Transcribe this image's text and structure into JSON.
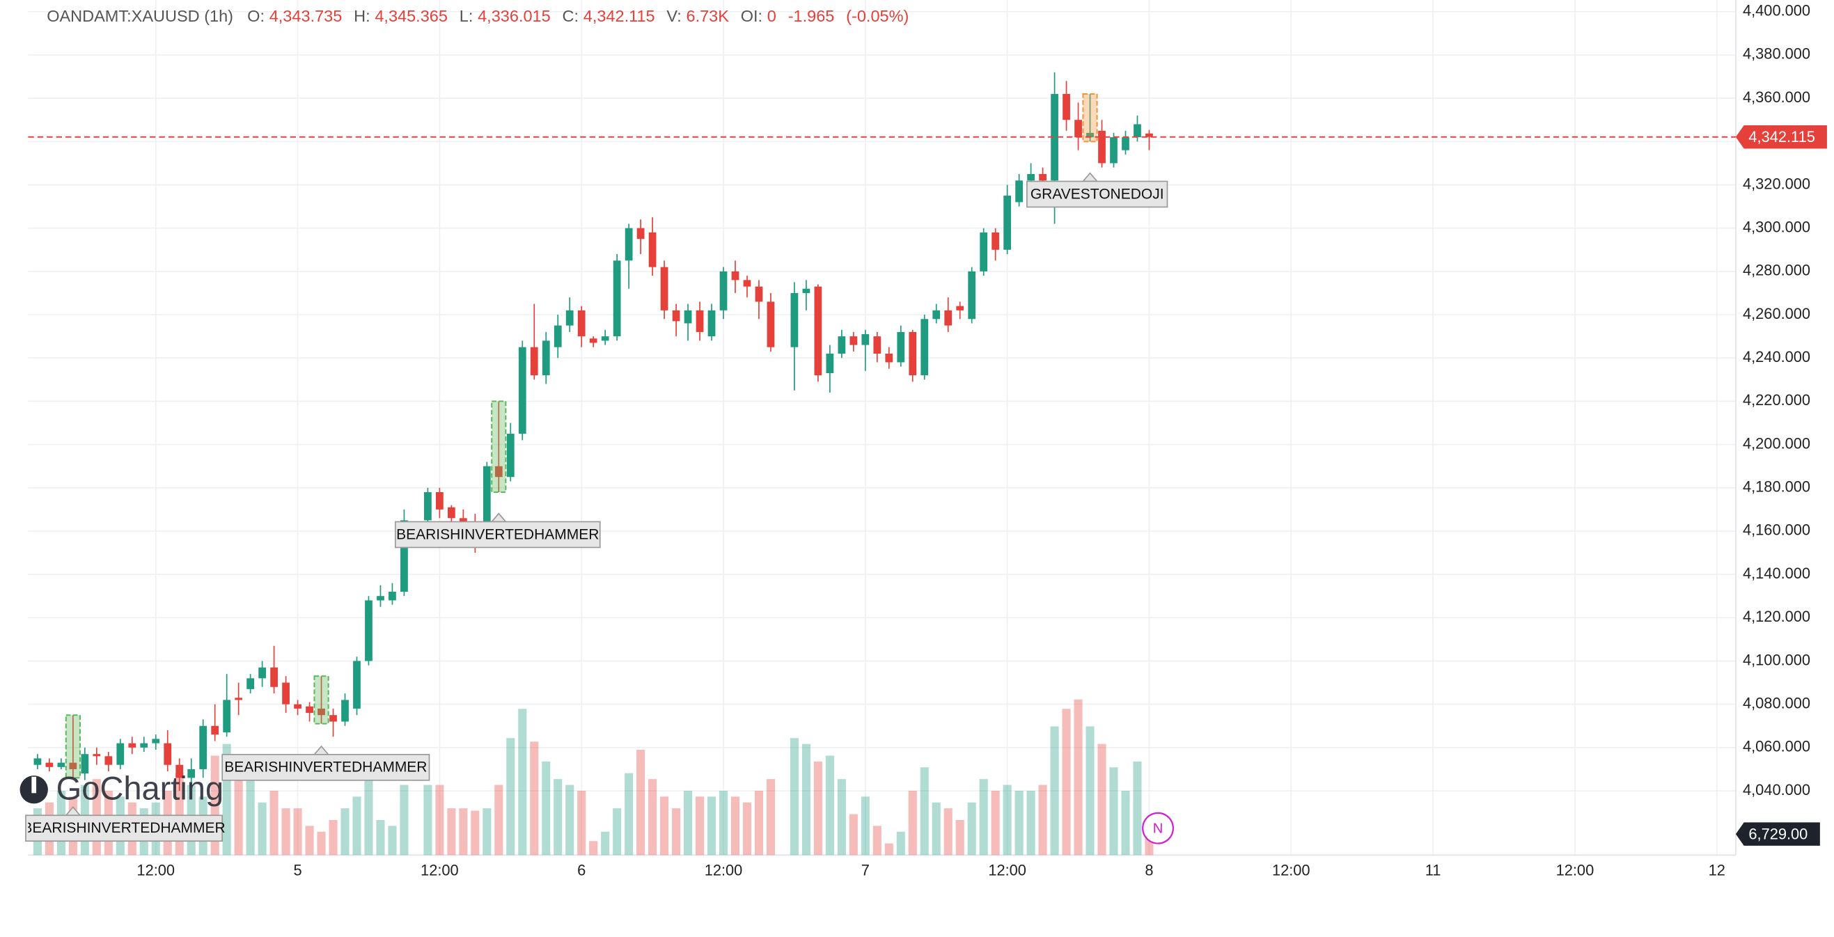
{
  "chart_data": {
    "type": "candlestick",
    "header": {
      "symbol": "OANDAMT:XAUUSD (1h)",
      "fields": [
        {
          "label": "O:",
          "value": "4,343.735"
        },
        {
          "label": "H:",
          "value": "4,345.365"
        },
        {
          "label": "L:",
          "value": "4,336.015"
        },
        {
          "label": "C:",
          "value": "4,342.115"
        },
        {
          "label": "V:",
          "value": "6.73K"
        },
        {
          "label": "OI:",
          "value": "0"
        }
      ],
      "change": "-1.965",
      "change_pct": "(-0.05%)"
    },
    "x": [
      2,
      3,
      4,
      5,
      6,
      7,
      8,
      9,
      10,
      11,
      12,
      13,
      14,
      15,
      16,
      17,
      18,
      19,
      20,
      21,
      22,
      23,
      24,
      25,
      26,
      27,
      28,
      29,
      30,
      31,
      32,
      33,
      35,
      36,
      37,
      38,
      39,
      40,
      41,
      42,
      43,
      44,
      45,
      46,
      47,
      48,
      49,
      50,
      51,
      52,
      53,
      54,
      55,
      56,
      57,
      58,
      59,
      60,
      61,
      62,
      63,
      64,
      66,
      67,
      68,
      69,
      70,
      71,
      72,
      73,
      74,
      75,
      76,
      77,
      78,
      79,
      80,
      81,
      82,
      83,
      84,
      85,
      86,
      87,
      88,
      89,
      90,
      91,
      92,
      93,
      94,
      95,
      96
    ],
    "open": [
      4052,
      4053,
      4051,
      4053,
      4048,
      4057,
      4056,
      4052,
      4062,
      4060,
      4062,
      4062,
      4052,
      4046,
      4050,
      4070,
      4067,
      4083,
      4087,
      4092,
      4097,
      4090,
      4080,
      4079,
      4078,
      4075,
      4072,
      4078,
      4100,
      4128,
      4128,
      4132,
      4165,
      4178,
      4171,
      4166,
      4162,
      4160,
      4190,
      4185,
      4205,
      4245,
      4232,
      4245,
      4255,
      4262,
      4249,
      4248,
      4250,
      4285,
      4300,
      4298,
      4282,
      4262,
      4256,
      4262,
      4250,
      4262,
      4280,
      4276,
      4273,
      4266,
      4245,
      4270,
      4273,
      4233,
      4242,
      4250,
      4246,
      4250,
      4242,
      4238,
      4252,
      4232,
      4258,
      4262,
      4264,
      4258,
      4280,
      4298,
      4290,
      4312,
      4322,
      4325,
      4322,
      4362,
      4350,
      4342,
      4345,
      4330,
      4336,
      4342,
      4343.735
    ],
    "high": [
      4057,
      4055,
      4055,
      4075,
      4060,
      4060,
      4058,
      4064,
      4065,
      4065,
      4066,
      4068,
      4055,
      4055,
      4073,
      4080,
      4094,
      4090,
      4094,
      4100,
      4107,
      4093,
      4082,
      4081,
      4093,
      4078,
      4085,
      4102,
      4130,
      4135,
      4136,
      4170,
      4180,
      4180,
      4172,
      4170,
      4168,
      4192,
      4220,
      4210,
      4248,
      4265,
      4252,
      4260,
      4268,
      4264,
      4250,
      4253,
      4288,
      4302,
      4304,
      4305,
      4285,
      4265,
      4265,
      4266,
      4265,
      4282,
      4285,
      4278,
      4276,
      4270,
      4275,
      4276,
      4274,
      4246,
      4253,
      4252,
      4253,
      4252,
      4245,
      4255,
      4253,
      4260,
      4265,
      4268,
      4266,
      4282,
      4300,
      4300,
      4320,
      4325,
      4330,
      4328,
      4372,
      4368,
      4358,
      4362,
      4350,
      4344,
      4345,
      4352,
      4345.365
    ],
    "low": [
      4050,
      4049,
      4050,
      4046,
      4045,
      4052,
      4049,
      4050,
      4057,
      4058,
      4059,
      4049,
      4040,
      4042,
      4046,
      4063,
      4065,
      4075,
      4085,
      4088,
      4085,
      4076,
      4075,
      4072,
      4071,
      4065,
      4070,
      4075,
      4098,
      4125,
      4126,
      4130,
      4160,
      4166,
      4162,
      4158,
      4150,
      4157,
      4178,
      4183,
      4202,
      4230,
      4228,
      4240,
      4252,
      4245,
      4245,
      4246,
      4248,
      4272,
      4288,
      4278,
      4258,
      4250,
      4248,
      4248,
      4248,
      4258,
      4270,
      4268,
      4258,
      4243,
      4225,
      4262,
      4229,
      4224,
      4240,
      4243,
      4234,
      4238,
      4235,
      4236,
      4229,
      4230,
      4256,
      4252,
      4258,
      4256,
      4278,
      4285,
      4288,
      4310,
      4316,
      4318,
      4302,
      4345,
      4336,
      4340,
      4328,
      4328,
      4334,
      4340,
      4336.015
    ],
    "close": [
      4055,
      4051,
      4053,
      4050,
      4057,
      4056,
      4052,
      4062,
      4060,
      4062,
      4064,
      4052,
      4046,
      4050,
      4070,
      4066,
      4082,
      4082,
      4092,
      4097,
      4088,
      4080,
      4078,
      4076,
      4075,
      4072,
      4082,
      4100,
      4128,
      4130,
      4132,
      4165,
      4178,
      4170,
      4166,
      4163,
      4160,
      4190,
      4185,
      4205,
      4245,
      4232,
      4248,
      4255,
      4262,
      4250,
      4247,
      4250,
      4285,
      4300,
      4295,
      4282,
      4262,
      4257,
      4262,
      4252,
      4262,
      4280,
      4276,
      4273,
      4266,
      4245,
      4270,
      4272,
      4232,
      4242,
      4250,
      4246,
      4251,
      4242,
      4238,
      4252,
      4232,
      4258,
      4262,
      4255,
      4262,
      4280,
      4298,
      4290,
      4315,
      4322,
      4325,
      4322,
      4362,
      4350,
      4342,
      4344,
      4330,
      4342,
      4342,
      4348,
      4342.115
    ],
    "volume": [
      14960,
      16830,
      20570,
      18700,
      22440,
      24310,
      20570,
      18700,
      16830,
      14960,
      16830,
      20570,
      26180,
      22440,
      18700,
      31790,
      35530,
      26180,
      29920,
      16830,
      20570,
      14960,
      14960,
      9350,
      7480,
      11220,
      14960,
      18700,
      26180,
      11220,
      9350,
      22440,
      22440,
      22440,
      14960,
      14960,
      14212,
      14960,
      22440,
      37400,
      46750,
      36278,
      29920,
      24310,
      22440,
      20570,
      4488,
      7480,
      14960,
      26180,
      33660,
      24310,
      18700,
      14960,
      20570,
      18700,
      18700,
      20570,
      18700,
      16830,
      20570,
      24310,
      37400,
      35530,
      29920,
      31790,
      24310,
      13090,
      18700,
      9350,
      3740,
      7480,
      20570,
      28050,
      16830,
      14960,
      11220,
      16830,
      24310,
      20570,
      22440,
      20570,
      20570,
      22440,
      41140,
      46750,
      49742,
      41140,
      35530,
      28050,
      20570,
      29920,
      6729
    ],
    "up_color": "#1f9b80",
    "down_color": "#e5403a",
    "highlight_colors": [
      "#5cb85c",
      "#5cb85c",
      "#5cb85c",
      "#f0953a"
    ],
    "xlim": [
      1.2,
      145.6
    ],
    "xticks": [
      {
        "value": 12,
        "label": "12:00"
      },
      {
        "value": 24,
        "label": "5"
      },
      {
        "value": 36,
        "label": "12:00"
      },
      {
        "value": 48,
        "label": "6"
      },
      {
        "value": 60,
        "label": "12:00"
      },
      {
        "value": 72,
        "label": "7"
      },
      {
        "value": 84,
        "label": "12:00"
      },
      {
        "value": 96,
        "label": "8"
      },
      {
        "value": 108,
        "label": "12:00"
      },
      {
        "value": 120,
        "label": "11"
      },
      {
        "value": 132,
        "label": "12:00"
      },
      {
        "value": 144,
        "label": "12"
      }
    ],
    "ylim": [
      4010.3,
      4405.4
    ],
    "yticks": [
      {
        "value": 4040,
        "label": "4,040.000"
      },
      {
        "value": 4060,
        "label": "4,060.000"
      },
      {
        "value": 4080,
        "label": "4,080.000"
      },
      {
        "value": 4100,
        "label": "4,100.000"
      },
      {
        "value": 4120,
        "label": "4,120.000"
      },
      {
        "value": 4140,
        "label": "4,140.000"
      },
      {
        "value": 4160,
        "label": "4,160.000"
      },
      {
        "value": 4180,
        "label": "4,180.000"
      },
      {
        "value": 4200,
        "label": "4,200.000"
      },
      {
        "value": 4220,
        "label": "4,220.000"
      },
      {
        "value": 4240,
        "label": "4,240.000"
      },
      {
        "value": 4260,
        "label": "4,260.000"
      },
      {
        "value": 4280,
        "label": "4,280.000"
      },
      {
        "value": 4300,
        "label": "4,300.000"
      },
      {
        "value": 4320,
        "label": "4,320.000"
      },
      {
        "value": 4340,
        "label": "4,340.000"
      },
      {
        "value": 4360,
        "label": "4,360.000"
      },
      {
        "value": 4380,
        "label": "4,380.000"
      },
      {
        "value": 4400,
        "label": "4,400.000"
      }
    ],
    "y2lim": [
      0,
      273300
    ],
    "grid": true,
    "last_price_label": "4,342.115",
    "last_volume_label": "6,729.00",
    "annotations": [
      "BEARISHINVERTEDHAMMER",
      "BEARISHINVERTEDHAMMER",
      "BEARISHINVERTEDHAMMER",
      "GRAVESTONEDOJI"
    ],
    "watermark": "GoCharting",
    "badge": "N"
  }
}
